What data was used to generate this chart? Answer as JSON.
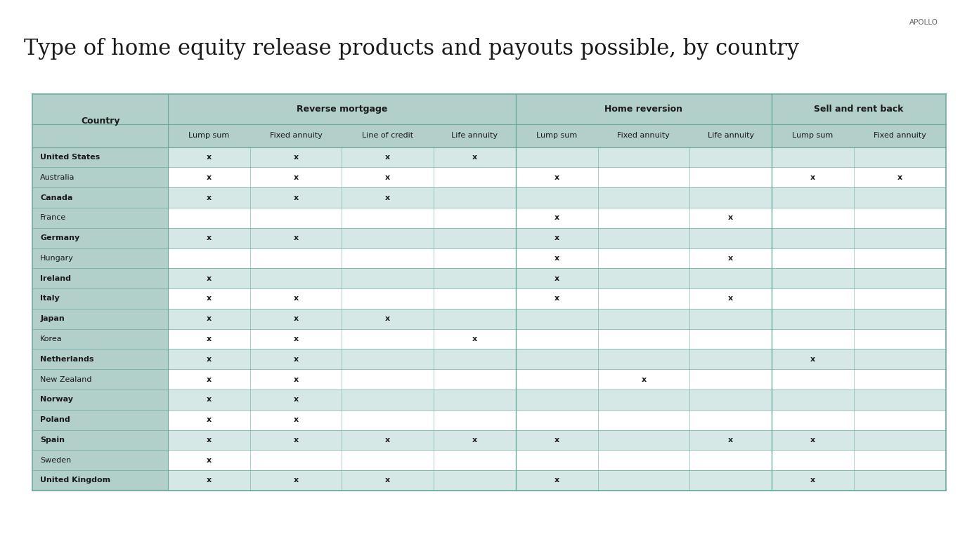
{
  "title": "Type of home equity release products and payouts possible, by country",
  "watermark": "APOLLO",
  "background_color": "#ffffff",
  "header_bg": "#b2cfc9",
  "row_bg_even": "#d6e8e5",
  "row_bg_odd": "#ffffff",
  "border_color": "#6aaba0",
  "header_text_color": "#1a1a1a",
  "row_text_color": "#1a1a1a",
  "columns": [
    "Country",
    "Lump sum",
    "Fixed annuity",
    "Line of credit",
    "Life annuity",
    "Lump sum",
    "Fixed annuity",
    "Life annuity",
    "Lump sum",
    "Fixed annuity"
  ],
  "col_groups": [
    {
      "label": "Reverse mortgage",
      "start": 1,
      "end": 4
    },
    {
      "label": "Home reversion",
      "start": 5,
      "end": 7
    },
    {
      "label": "Sell and rent back",
      "start": 8,
      "end": 9
    }
  ],
  "rows": [
    [
      "United States",
      "x",
      "x",
      "x",
      "x",
      "",
      "",
      "",
      "",
      ""
    ],
    [
      "Australia",
      "x",
      "x",
      "x",
      "",
      "x",
      "",
      "",
      "x",
      "x"
    ],
    [
      "Canada",
      "x",
      "x",
      "x",
      "",
      "",
      "",
      "",
      "",
      ""
    ],
    [
      "France",
      "",
      "",
      "",
      "",
      "x",
      "",
      "x",
      "",
      ""
    ],
    [
      "Germany",
      "x",
      "x",
      "",
      "",
      "x",
      "",
      "",
      "",
      ""
    ],
    [
      "Hungary",
      "",
      "",
      "",
      "",
      "x",
      "",
      "x",
      "",
      ""
    ],
    [
      "Ireland",
      "x",
      "",
      "",
      "",
      "x",
      "",
      "",
      "",
      ""
    ],
    [
      "Italy",
      "x",
      "x",
      "",
      "",
      "x",
      "",
      "x",
      "",
      ""
    ],
    [
      "Japan",
      "x",
      "x",
      "x",
      "",
      "",
      "",
      "",
      "",
      ""
    ],
    [
      "Korea",
      "x",
      "x",
      "",
      "x",
      "",
      "",
      "",
      "",
      ""
    ],
    [
      "Netherlands",
      "x",
      "x",
      "",
      "",
      "",
      "",
      "",
      "x",
      ""
    ],
    [
      "New Zealand",
      "x",
      "x",
      "",
      "",
      "",
      "x",
      "",
      "",
      ""
    ],
    [
      "Norway",
      "x",
      "x",
      "",
      "",
      "",
      "",
      "",
      "",
      ""
    ],
    [
      "Poland",
      "x",
      "x",
      "",
      "",
      "",
      "",
      "",
      "",
      ""
    ],
    [
      "Spain",
      "x",
      "x",
      "x",
      "x",
      "x",
      "",
      "x",
      "x",
      ""
    ],
    [
      "Sweden",
      "x",
      "",
      "",
      "",
      "",
      "",
      "",
      "",
      ""
    ],
    [
      "United Kingdom",
      "x",
      "x",
      "x",
      "",
      "x",
      "",
      "",
      "x",
      ""
    ]
  ],
  "bold_countries": [
    "United States",
    "Canada",
    "Germany",
    "Ireland",
    "Italy",
    "Japan",
    "Netherlands",
    "Norway",
    "Poland",
    "Spain",
    "United Kingdom"
  ]
}
